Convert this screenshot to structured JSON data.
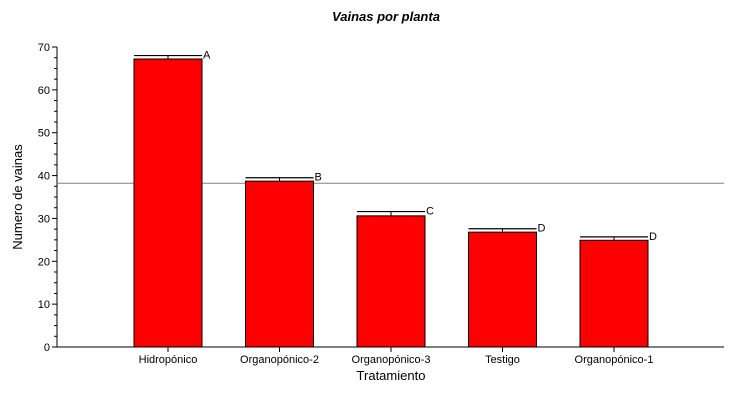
{
  "chart_data": {
    "type": "bar",
    "title": "Vainas por planta",
    "xlabel": "Tratamiento",
    "ylabel": "Numero de vainas",
    "categories": [
      "Hidropónico",
      "Organopónico-2",
      "Organopónico-3",
      "Testigo",
      "Organopónico-1"
    ],
    "values": [
      67.2,
      38.7,
      30.6,
      26.8,
      24.9
    ],
    "error_upper": [
      68.0,
      39.5,
      31.6,
      27.6,
      25.7
    ],
    "significance_letters": [
      "A",
      "B",
      "C",
      "D",
      "D"
    ],
    "reference_line": 38.2,
    "ylim": [
      0,
      70
    ],
    "yticks": [
      0,
      10,
      20,
      30,
      40,
      50,
      60,
      70
    ],
    "grid": false,
    "legend": "none",
    "colors": {
      "bar_fill": "#ff0000",
      "bar_stroke": "#000000",
      "reference_line": "#808080",
      "axis": "#000000"
    }
  }
}
